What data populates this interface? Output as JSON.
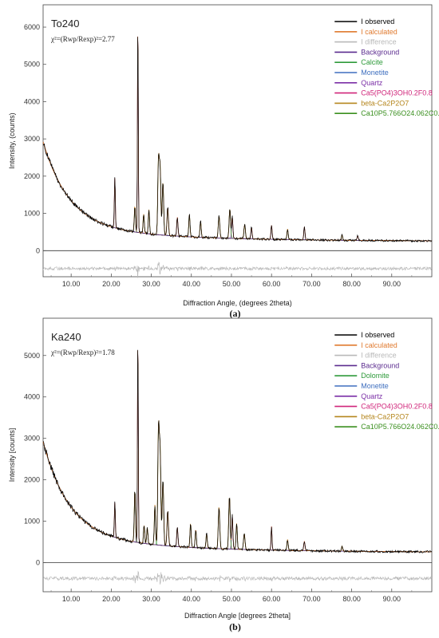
{
  "chart_data": [
    {
      "type": "line",
      "caption": "(a)",
      "title": "To240",
      "stat": "χ²=(Rwp/Rexp)²=2.77",
      "xlabel": "Diffraction Angle, (degrees 2theta)",
      "ylabel": "Intensity, (counts)",
      "xlim": [
        3,
        100
      ],
      "ylim": [
        -700,
        6600
      ],
      "x_ticks": [
        "10.00",
        "20.00",
        "30.00",
        "40.00",
        "50.00",
        "60.00",
        "70.00",
        "80.00",
        "90.00"
      ],
      "y_ticks": [
        "0",
        "1000",
        "2000",
        "3000",
        "4000",
        "5000",
        "6000"
      ],
      "difference_offset": -480,
      "colors": {
        "observed": "#000000",
        "calculated": "#e07a2f",
        "difference": "#b9b9b9",
        "background": "#5b2c8f",
        "phase1": "#2e9a3a",
        "phase2": "#3f6fbf",
        "quartz": "#7b2fa6",
        "apatite": "#d0257a",
        "beta": "#b5861d",
        "fluorapatite": "#3a8f1f"
      },
      "legend": [
        {
          "label": "I observed",
          "color": "#000000"
        },
        {
          "label": "I calculated",
          "color": "#e07a2f"
        },
        {
          "label": "I difference",
          "color": "#b9b9b9"
        },
        {
          "label": "Background",
          "color": "#5b2c8f"
        },
        {
          "label": "Calcite",
          "color": "#2e9a3a"
        },
        {
          "label": "Monetite",
          "color": "#3f6fbf"
        },
        {
          "label": "Quartz",
          "color": "#7b2fa6"
        },
        {
          "label": "Ca5(PO4)3OH0.2F0.8",
          "color": "#d0257a"
        },
        {
          "label": "beta-Ca2P2O7",
          "color": "#b5861d"
        },
        {
          "label": "Ca10P5.766O24.062C0.232F1.728",
          "color": "#3a8f1f"
        }
      ],
      "peaks": [
        {
          "x": 20.9,
          "y": 1950,
          "w": 0.12,
          "phase": "quartz"
        },
        {
          "x": 25.9,
          "y": 1200,
          "w": 0.15,
          "phase": "fluorapatite"
        },
        {
          "x": 26.65,
          "y": 6350,
          "w": 0.1,
          "phase": "quartz"
        },
        {
          "x": 28.1,
          "y": 980,
          "w": 0.15,
          "phase": "fluorapatite"
        },
        {
          "x": 29.4,
          "y": 1100,
          "w": 0.15,
          "phase": "phase1"
        },
        {
          "x": 31.8,
          "y": 2450,
          "w": 0.18,
          "phase": "fluorapatite"
        },
        {
          "x": 32.2,
          "y": 2200,
          "w": 0.18,
          "phase": "fluorapatite"
        },
        {
          "x": 32.9,
          "y": 1850,
          "w": 0.18,
          "phase": "fluorapatite"
        },
        {
          "x": 34.1,
          "y": 1150,
          "w": 0.18,
          "phase": "beta"
        },
        {
          "x": 36.5,
          "y": 900,
          "w": 0.15,
          "phase": "quartz"
        },
        {
          "x": 39.5,
          "y": 980,
          "w": 0.15,
          "phase": "phase1"
        },
        {
          "x": 42.3,
          "y": 800,
          "w": 0.15,
          "phase": "fluorapatite"
        },
        {
          "x": 46.9,
          "y": 930,
          "w": 0.18,
          "phase": "fluorapatite"
        },
        {
          "x": 49.6,
          "y": 1120,
          "w": 0.18,
          "phase": "fluorapatite"
        },
        {
          "x": 50.2,
          "y": 920,
          "w": 0.15,
          "phase": "quartz"
        },
        {
          "x": 53.3,
          "y": 700,
          "w": 0.18,
          "phase": "fluorapatite"
        },
        {
          "x": 55.0,
          "y": 620,
          "w": 0.15,
          "phase": "quartz"
        },
        {
          "x": 60.0,
          "y": 680,
          "w": 0.15,
          "phase": "quartz"
        },
        {
          "x": 64.0,
          "y": 580,
          "w": 0.15,
          "phase": "fluorapatite"
        },
        {
          "x": 68.2,
          "y": 640,
          "w": 0.15,
          "phase": "quartz"
        },
        {
          "x": 77.6,
          "y": 420,
          "w": 0.15,
          "phase": "fluorapatite"
        },
        {
          "x": 81.5,
          "y": 400,
          "w": 0.15,
          "phase": "quartz"
        }
      ]
    },
    {
      "type": "line",
      "caption": "(b)",
      "title": "Ka240",
      "stat": "χ²=(Rwp/Rexp)²=1.78",
      "xlabel": "Diffraction Angle [degrees 2theta]",
      "ylabel": "Intensity [counts]",
      "xlim": [
        3,
        100
      ],
      "ylim": [
        -700,
        5900
      ],
      "x_ticks": [
        "10.00",
        "20.00",
        "30.00",
        "40.00",
        "50.00",
        "60.00",
        "70.00",
        "80.00",
        "90.00"
      ],
      "y_ticks": [
        "0",
        "1000",
        "2000",
        "3000",
        "4000",
        "5000"
      ],
      "difference_offset": -380,
      "colors": {
        "observed": "#000000",
        "calculated": "#e07a2f",
        "difference": "#b9b9b9",
        "background": "#5b2c8f",
        "phase1": "#2e9a3a",
        "phase2": "#3f6fbf",
        "quartz": "#7b2fa6",
        "apatite": "#d0257a",
        "beta": "#b5861d",
        "fluorapatite": "#3a8f1f"
      },
      "legend": [
        {
          "label": "I observed",
          "color": "#000000"
        },
        {
          "label": "I calculated",
          "color": "#e07a2f"
        },
        {
          "label": "I difference",
          "color": "#b9b9b9"
        },
        {
          "label": "Background",
          "color": "#5b2c8f"
        },
        {
          "label": "Dolomite",
          "color": "#2e9a3a"
        },
        {
          "label": "Monetite",
          "color": "#3f6fbf"
        },
        {
          "label": "Quartz",
          "color": "#7b2fa6"
        },
        {
          "label": "Ca5(PO4)3OH0.2F0.8",
          "color": "#d0257a"
        },
        {
          "label": "beta-Ca2P2O7",
          "color": "#b5861d"
        },
        {
          "label": "Ca10P5.766O24.062C0.232F1.728",
          "color": "#3a8f1f"
        }
      ],
      "peaks": [
        {
          "x": 20.9,
          "y": 1450,
          "w": 0.12,
          "phase": "quartz"
        },
        {
          "x": 25.9,
          "y": 1750,
          "w": 0.15,
          "phase": "fluorapatite"
        },
        {
          "x": 26.65,
          "y": 5650,
          "w": 0.1,
          "phase": "quartz"
        },
        {
          "x": 28.2,
          "y": 900,
          "w": 0.15,
          "phase": "fluorapatite"
        },
        {
          "x": 29.0,
          "y": 850,
          "w": 0.15,
          "phase": "fluorapatite"
        },
        {
          "x": 30.9,
          "y": 1400,
          "w": 0.15,
          "phase": "phase1"
        },
        {
          "x": 31.8,
          "y": 3250,
          "w": 0.18,
          "phase": "fluorapatite"
        },
        {
          "x": 32.2,
          "y": 2650,
          "w": 0.18,
          "phase": "fluorapatite"
        },
        {
          "x": 32.9,
          "y": 2000,
          "w": 0.18,
          "phase": "fluorapatite"
        },
        {
          "x": 34.1,
          "y": 1250,
          "w": 0.18,
          "phase": "beta"
        },
        {
          "x": 36.5,
          "y": 850,
          "w": 0.15,
          "phase": "quartz"
        },
        {
          "x": 39.8,
          "y": 950,
          "w": 0.15,
          "phase": "fluorapatite"
        },
        {
          "x": 41.1,
          "y": 800,
          "w": 0.15,
          "phase": "phase1"
        },
        {
          "x": 43.8,
          "y": 700,
          "w": 0.15,
          "phase": "fluorapatite"
        },
        {
          "x": 46.9,
          "y": 1350,
          "w": 0.18,
          "phase": "fluorapatite"
        },
        {
          "x": 49.5,
          "y": 1600,
          "w": 0.18,
          "phase": "fluorapatite"
        },
        {
          "x": 50.2,
          "y": 1150,
          "w": 0.15,
          "phase": "quartz"
        },
        {
          "x": 51.3,
          "y": 950,
          "w": 0.15,
          "phase": "phase1"
        },
        {
          "x": 53.2,
          "y": 700,
          "w": 0.18,
          "phase": "fluorapatite"
        },
        {
          "x": 60.0,
          "y": 880,
          "w": 0.12,
          "phase": "quartz"
        },
        {
          "x": 64.0,
          "y": 560,
          "w": 0.15,
          "phase": "fluorapatite"
        },
        {
          "x": 68.2,
          "y": 520,
          "w": 0.15,
          "phase": "quartz"
        },
        {
          "x": 77.6,
          "y": 400,
          "w": 0.15,
          "phase": "fluorapatite"
        }
      ]
    }
  ]
}
